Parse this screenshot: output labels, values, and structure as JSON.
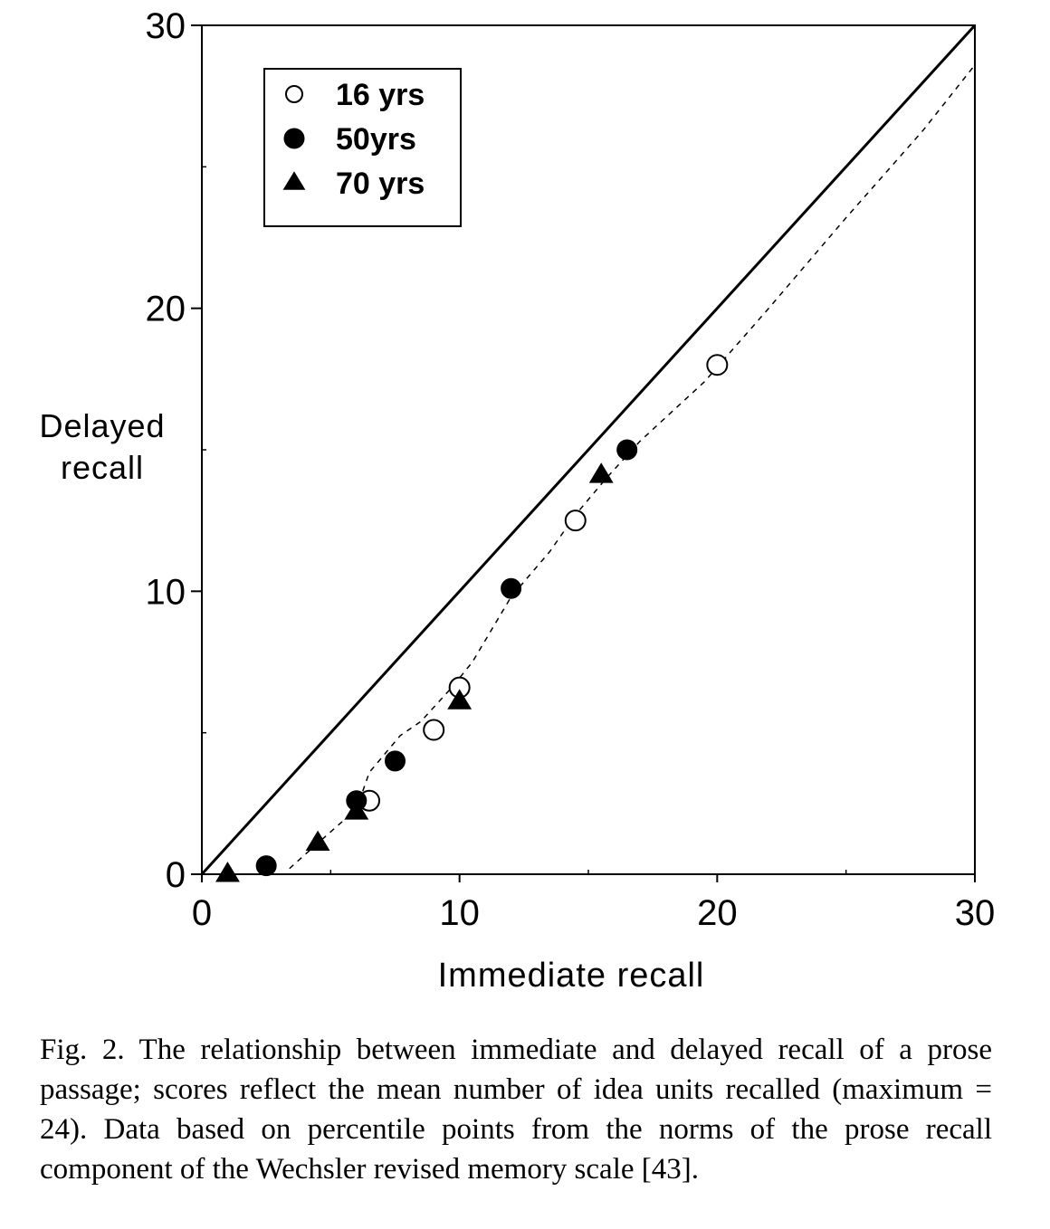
{
  "chart_data": {
    "type": "scatter",
    "xlabel": "Immediate recall",
    "ylabel_lines": [
      "Delayed",
      "recall"
    ],
    "xlim": [
      0,
      30
    ],
    "ylim": [
      0,
      30
    ],
    "x_ticks": [
      0,
      10,
      20,
      30
    ],
    "y_ticks": [
      0,
      10,
      20,
      30
    ],
    "x_minor_ticks": [
      5,
      15,
      25
    ],
    "y_minor_ticks": [
      5,
      15,
      25
    ],
    "grid": false,
    "legend_position": "top-left",
    "series": [
      {
        "name": "16 yrs",
        "marker": "open-circle",
        "points": [
          [
            6.5,
            2.6
          ],
          [
            9.0,
            5.1
          ],
          [
            10.0,
            6.6
          ],
          [
            14.5,
            12.5
          ],
          [
            20.0,
            18.0
          ]
        ]
      },
      {
        "name": "50yrs",
        "marker": "filled-circle",
        "points": [
          [
            2.5,
            0.3
          ],
          [
            6.0,
            2.6
          ],
          [
            7.5,
            4.0
          ],
          [
            12.0,
            10.1
          ],
          [
            16.5,
            15.0
          ]
        ]
      },
      {
        "name": "70 yrs",
        "marker": "filled-triangle",
        "points": [
          [
            1.0,
            0.0
          ],
          [
            4.5,
            1.1
          ],
          [
            6.0,
            2.2
          ],
          [
            10.0,
            6.1
          ],
          [
            15.5,
            14.1
          ]
        ]
      }
    ],
    "reference_lines": [
      {
        "style": "solid",
        "points": [
          [
            0,
            0
          ],
          [
            30,
            30
          ]
        ]
      },
      {
        "style": "dashed",
        "points": [
          [
            3.4,
            0.2
          ],
          [
            4.5,
            1.1
          ],
          [
            6.0,
            2.3
          ],
          [
            6.5,
            3.6
          ],
          [
            7.7,
            4.9
          ],
          [
            8.5,
            5.4
          ],
          [
            9.7,
            6.6
          ],
          [
            10.5,
            7.5
          ],
          [
            12.0,
            9.8
          ],
          [
            13.5,
            11.4
          ],
          [
            14.5,
            12.7
          ],
          [
            15.7,
            14.0
          ],
          [
            17.0,
            15.3
          ],
          [
            19.5,
            17.4
          ],
          [
            22.0,
            20.0
          ],
          [
            25.0,
            23.2
          ],
          [
            28.0,
            26.3
          ],
          [
            30,
            28.6
          ]
        ]
      }
    ]
  },
  "caption": "Fig. 2. The relationship between immediate and delayed recall of a prose passage; scores reflect the mean number of idea units recalled (maximum = 24). Data based on percentile points from the norms of the prose recall component of the Wechsler revised memory scale [43]."
}
